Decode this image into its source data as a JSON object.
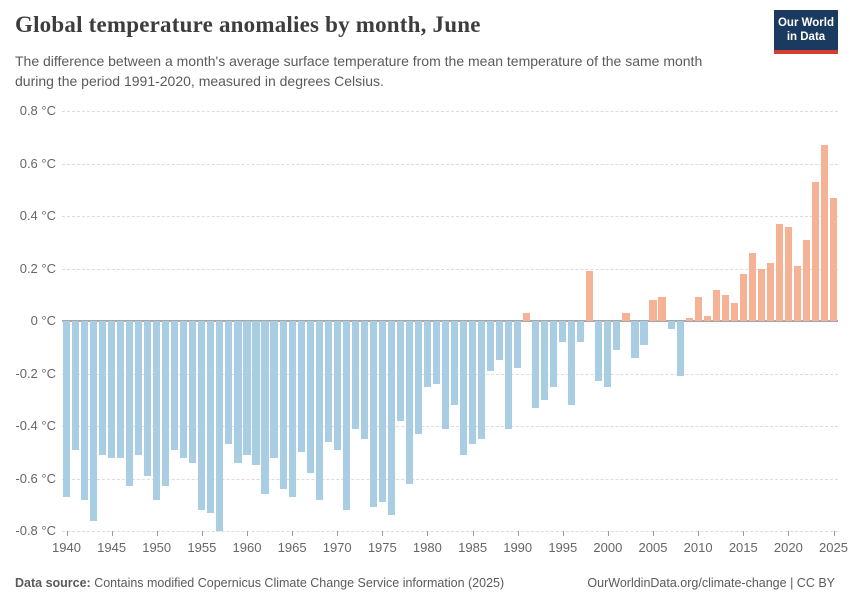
{
  "header": {
    "title": "Global temperature anomalies by month, June",
    "subtitle_line1": "The difference between a month's average surface temperature from the mean temperature of the same month",
    "subtitle_line2": "during the period 1991-2020, measured in degrees Celsius.",
    "logo_line1": "Our World",
    "logo_line2": "in Data",
    "logo_bg_color": "#1b3a5f",
    "logo_accent_color": "#d63c2f"
  },
  "footer": {
    "source_label": "Data source:",
    "source_text": " Contains modified Copernicus Climate Change Service information (2025)",
    "link_text": "OurWorldinData.org/climate-change",
    "license_sep": " | ",
    "license_text": "CC BY"
  },
  "chart_data": {
    "type": "bar",
    "title": "Global temperature anomalies by month, June",
    "ylabel": "",
    "xlabel": "",
    "unit": "°C",
    "ylim": [
      -0.8,
      0.8
    ],
    "grid": "dashed-horizontal",
    "legend": "none",
    "positive_color": "#f6b294",
    "negative_color": "#a9cee4",
    "ytick_values": [
      0.8,
      0.6,
      0.4,
      0.2,
      0,
      -0.2,
      -0.4,
      -0.6,
      -0.8
    ],
    "ytick_labels": [
      "0.8 °C",
      "0.6 °C",
      "0.4 °C",
      "0.2 °C",
      "0 °C",
      "-0.2 °C",
      "-0.4 °C",
      "-0.6 °C",
      "-0.8 °C"
    ],
    "xtick_years": [
      1940,
      1945,
      1950,
      1955,
      1960,
      1965,
      1970,
      1975,
      1980,
      1985,
      1990,
      1995,
      2000,
      2005,
      2010,
      2015,
      2020,
      2025
    ],
    "years": [
      1940,
      1941,
      1942,
      1943,
      1944,
      1945,
      1946,
      1947,
      1948,
      1949,
      1950,
      1951,
      1952,
      1953,
      1954,
      1955,
      1956,
      1957,
      1958,
      1959,
      1960,
      1961,
      1962,
      1963,
      1964,
      1965,
      1966,
      1967,
      1968,
      1969,
      1970,
      1971,
      1972,
      1973,
      1974,
      1975,
      1976,
      1977,
      1978,
      1979,
      1980,
      1981,
      1982,
      1983,
      1984,
      1985,
      1986,
      1987,
      1988,
      1989,
      1990,
      1991,
      1992,
      1993,
      1994,
      1995,
      1996,
      1997,
      1998,
      1999,
      2000,
      2001,
      2002,
      2003,
      2004,
      2005,
      2006,
      2007,
      2008,
      2009,
      2010,
      2011,
      2012,
      2013,
      2014,
      2015,
      2016,
      2017,
      2018,
      2019,
      2020,
      2021,
      2022,
      2023,
      2024,
      2025
    ],
    "values": [
      -0.67,
      -0.49,
      -0.68,
      -0.76,
      -0.51,
      -0.52,
      -0.52,
      -0.63,
      -0.51,
      -0.59,
      -0.68,
      -0.63,
      -0.49,
      -0.52,
      -0.54,
      -0.72,
      -0.73,
      -0.8,
      -0.47,
      -0.54,
      -0.51,
      -0.55,
      -0.66,
      -0.52,
      -0.64,
      -0.67,
      -0.5,
      -0.58,
      -0.68,
      -0.46,
      -0.49,
      -0.72,
      -0.41,
      -0.45,
      -0.71,
      -0.69,
      -0.74,
      -0.38,
      -0.62,
      -0.43,
      -0.25,
      -0.24,
      -0.41,
      -0.32,
      -0.51,
      -0.47,
      -0.45,
      -0.19,
      -0.15,
      -0.41,
      -0.18,
      0.03,
      -0.33,
      -0.3,
      -0.25,
      -0.08,
      -0.32,
      -0.08,
      0.19,
      -0.23,
      -0.25,
      -0.11,
      0.03,
      -0.14,
      -0.09,
      0.08,
      0.09,
      -0.03,
      -0.21,
      0.01,
      0.09,
      0.02,
      0.12,
      0.1,
      0.07,
      0.18,
      0.26,
      0.2,
      0.22,
      0.37,
      0.36,
      0.21,
      0.31,
      0.53,
      0.67,
      0.47
    ]
  }
}
